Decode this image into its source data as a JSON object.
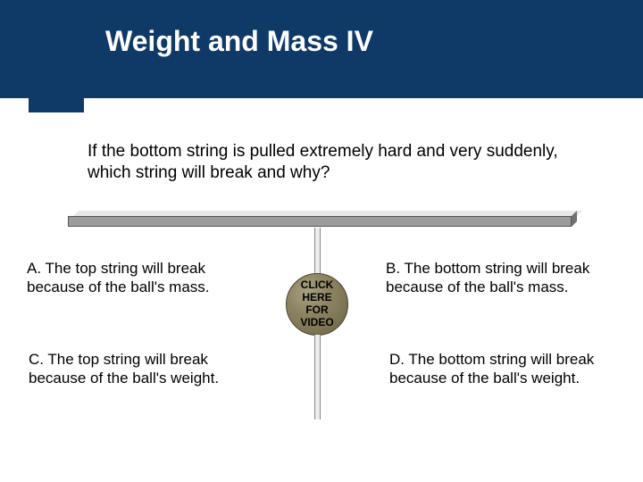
{
  "header": {
    "title": "Weight and Mass IV",
    "bar_color": "#0f3a68",
    "title_color": "#ffffff"
  },
  "question": "If the bottom string is pulled extremely hard and very suddenly, which string will break and why?",
  "diagram": {
    "support_bar_color": "#9c9c9c",
    "string_color": "#ededed",
    "ball_color": "#8b8360"
  },
  "video_button": {
    "line1": "CLICK",
    "line2": "HERE",
    "line3": "FOR",
    "line4": "VIDEO"
  },
  "options": {
    "a": "A. The top string will break because of the ball's mass.",
    "b": "B. The bottom string will break because of the ball's mass.",
    "c": "C. The top string will break because of the ball's weight.",
    "d": "D. The bottom string will break because of the ball's weight."
  }
}
